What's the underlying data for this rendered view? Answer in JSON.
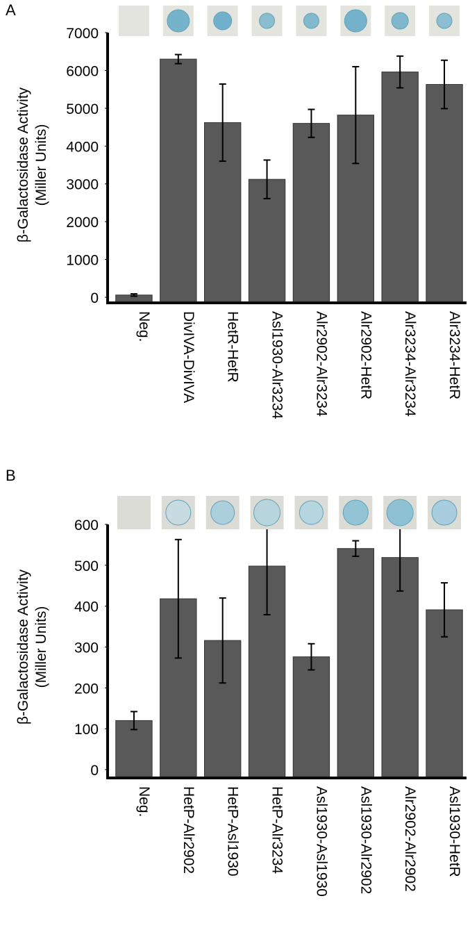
{
  "chart_data": [
    {
      "type": "bar",
      "panel": "A",
      "ylabel": [
        "β-Galactosidase Activity",
        "(Miller Units)"
      ],
      "categories": [
        "Neg.",
        "DivIVA-DivIVA",
        "HetR-HetR",
        "Asl1930-Alr3234",
        "Alr2902-Alr3234",
        "Alr2902-HetR",
        "Alr3234-Alr3234",
        "Alr3234-HetR"
      ],
      "values": [
        60,
        6300,
        4620,
        3120,
        4600,
        4820,
        5960,
        5630
      ],
      "errors": [
        30,
        120,
        1020,
        510,
        370,
        1280,
        420,
        640
      ],
      "color": "#595959",
      "ylim": [
        0,
        7000
      ],
      "yticks": [
        0,
        1000,
        2000,
        3000,
        4000,
        5000,
        6000,
        7000
      ]
    },
    {
      "type": "bar",
      "panel": "B",
      "ylabel": [
        "β-Galactosidase Activity",
        "(Miller Units)"
      ],
      "categories": [
        "Neg.",
        "HetP-Alr2902",
        "HetP-Asl1930",
        "HetP-Alr3234",
        "Asl1930-Asl1930",
        "Asl1930-Alr2902",
        "Alr2902-Alr2902",
        "Asl1930-HetR"
      ],
      "values": [
        120,
        418,
        316,
        498,
        276,
        541,
        519,
        391
      ],
      "errors": [
        22,
        145,
        104,
        119,
        32,
        19,
        82,
        66
      ],
      "color": "#595959",
      "ylim": [
        0,
        600
      ],
      "yticks": [
        0,
        100,
        200,
        300,
        400,
        500,
        600
      ]
    }
  ]
}
